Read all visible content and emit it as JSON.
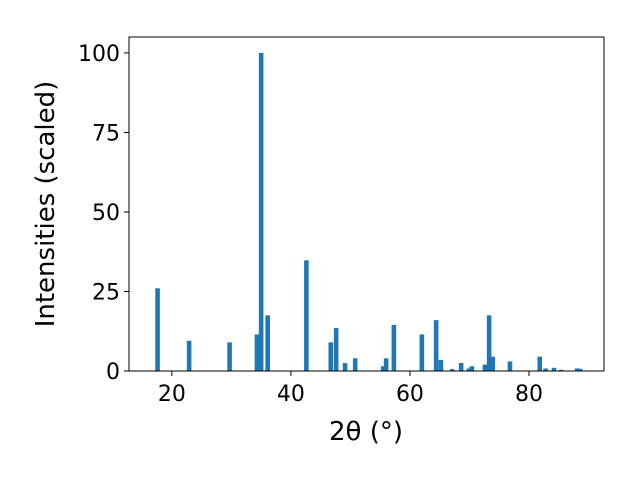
{
  "chart_data": {
    "type": "bar",
    "color": "#1f77b4",
    "x_label": "2θ (°)",
    "y_label": "Intensities (scaled)",
    "x": [
      17.6,
      22.9,
      29.7,
      34.3,
      35.0,
      36.1,
      42.6,
      46.7,
      47.6,
      49.1,
      50.8,
      55.5,
      56.0,
      57.3,
      62.0,
      64.4,
      65.2,
      67.1,
      68.6,
      69.9,
      70.4,
      72.6,
      73.3,
      73.9,
      76.8,
      81.8,
      82.8,
      84.2,
      85.4,
      88.1,
      88.6
    ],
    "values": [
      26,
      9.5,
      9,
      11.5,
      100,
      17.5,
      34.8,
      9,
      13.5,
      2.5,
      4,
      1.5,
      4,
      14.5,
      11.5,
      16,
      3.5,
      0.6,
      2.5,
      0.8,
      1.5,
      2,
      17.5,
      4.5,
      3,
      4.5,
      0.8,
      1,
      0.4,
      0.8,
      0.7
    ],
    "xlim": [
      12.8,
      92.6
    ],
    "xticks": [
      20,
      40,
      60,
      80
    ],
    "ylim": [
      0,
      105
    ],
    "yticks": [
      0,
      25,
      50,
      75,
      100
    ]
  }
}
